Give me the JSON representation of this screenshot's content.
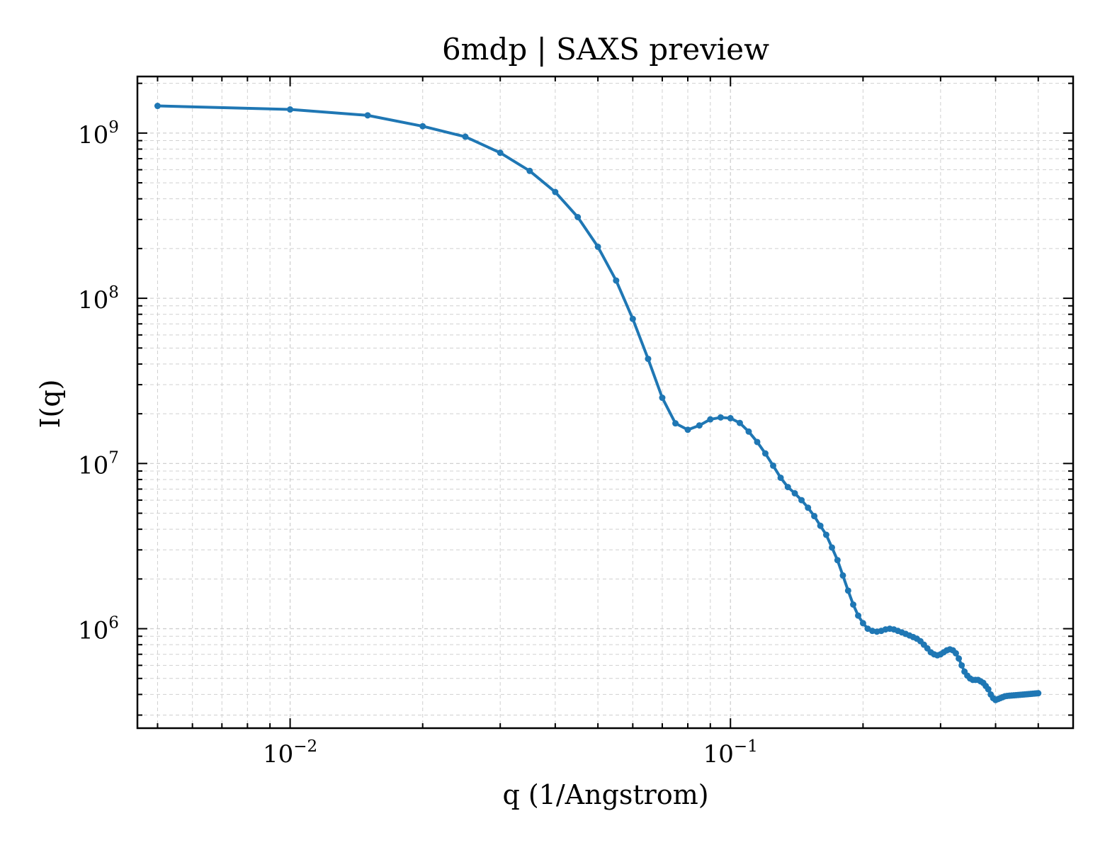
{
  "chart_data": {
    "type": "line",
    "title": "6mdp | SAXS preview",
    "xlabel": "q (1/Angstrom)",
    "ylabel": "I(q)",
    "xscale": "log",
    "yscale": "log",
    "xlim": [
      0.0045,
      0.6
    ],
    "ylim": [
      250000,
      2200000000
    ],
    "grid": true,
    "legend": "none",
    "color": "#1f77b4",
    "x_tick_labels": [
      {
        "value": 0.01,
        "base": "10",
        "exp": "−2"
      },
      {
        "value": 0.1,
        "base": "10",
        "exp": "−1"
      }
    ],
    "y_tick_labels": [
      {
        "value": 1000000,
        "base": "10",
        "exp": "6"
      },
      {
        "value": 10000000,
        "base": "10",
        "exp": "7"
      },
      {
        "value": 100000000,
        "base": "10",
        "exp": "8"
      },
      {
        "value": 1000000000,
        "base": "10",
        "exp": "9"
      }
    ],
    "series": [
      {
        "x": [
          0.005,
          0.01,
          0.015,
          0.02,
          0.025,
          0.03,
          0.035,
          0.04,
          0.045,
          0.05,
          0.055,
          0.06,
          0.065,
          0.07,
          0.075,
          0.08,
          0.085,
          0.09,
          0.095,
          0.1,
          0.105,
          0.11,
          0.115,
          0.12,
          0.125,
          0.13,
          0.135,
          0.14,
          0.145,
          0.15,
          0.155,
          0.16,
          0.165,
          0.17,
          0.175,
          0.18,
          0.185,
          0.19,
          0.195,
          0.2,
          0.205,
          0.21,
          0.215,
          0.22,
          0.225,
          0.23,
          0.235,
          0.24,
          0.245,
          0.25,
          0.255,
          0.26,
          0.265,
          0.27,
          0.275,
          0.28,
          0.285,
          0.29,
          0.295,
          0.3,
          0.305,
          0.31,
          0.315,
          0.32,
          0.325,
          0.33,
          0.335,
          0.34,
          0.345,
          0.35,
          0.355,
          0.36,
          0.365,
          0.37,
          0.375,
          0.38,
          0.385,
          0.39,
          0.395,
          0.4,
          0.405,
          0.41,
          0.415,
          0.42,
          0.425,
          0.43,
          0.435,
          0.44,
          0.445,
          0.45,
          0.455,
          0.46,
          0.465,
          0.47,
          0.475,
          0.48,
          0.485,
          0.49,
          0.495,
          0.5
        ],
        "y": [
          1460000000,
          1390000000,
          1280000000,
          1100000000,
          950000000,
          760000000,
          590000000,
          440000000,
          310000000,
          205000000,
          128000000,
          75000000,
          43000000,
          25000000,
          17500000,
          16000000,
          17000000,
          18500000,
          19000000,
          18800000,
          17600000,
          15600000,
          13500000,
          11500000,
          9700000,
          8200000,
          7200000,
          6600000,
          6000000,
          5400000,
          4800000,
          4200000,
          3700000,
          3100000,
          2600000,
          2100000,
          1700000,
          1400000,
          1200000,
          1080000,
          1000000,
          970000,
          960000,
          970000,
          990000,
          1000000,
          990000,
          970000,
          950000,
          930000,
          910000,
          890000,
          870000,
          840000,
          800000,
          760000,
          720000,
          700000,
          690000,
          700000,
          720000,
          740000,
          750000,
          740000,
          710000,
          660000,
          600000,
          550000,
          520000,
          500000,
          490000,
          490000,
          490000,
          480000,
          470000,
          450000,
          430000,
          400000,
          380000,
          370000,
          375000,
          380000,
          385000,
          390000,
          392000,
          393000,
          394000,
          395000,
          396000,
          397000,
          398000,
          399000,
          400000,
          401000,
          402000,
          403000,
          404000,
          405000,
          406000,
          407000
        ]
      }
    ]
  }
}
